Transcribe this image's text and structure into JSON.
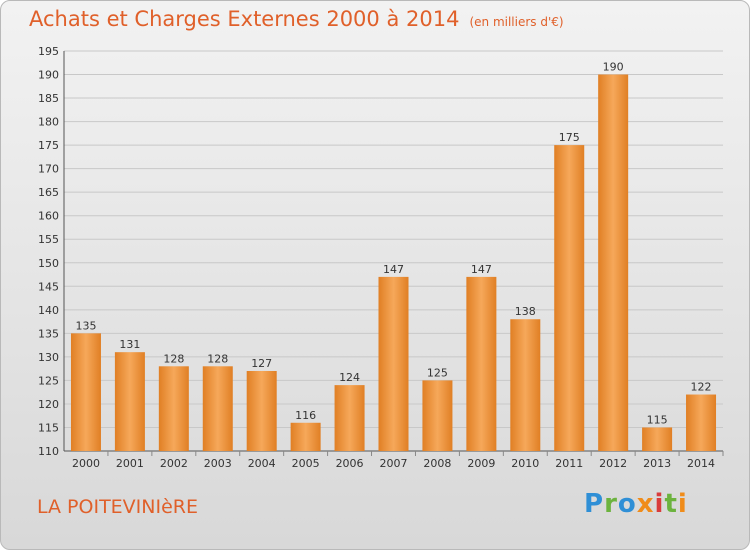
{
  "title": "Achats et Charges Externes 2000 à 2014",
  "subtitle": "(en milliers d'€)",
  "commune": "LA POITEVINIèRE",
  "brand": {
    "text": "Proxiti"
  },
  "colors": {
    "bar_light": "#f6a85a",
    "bar_dark": "#e07f24",
    "title": "#e0602a",
    "grid": "#c8c8c8",
    "axis_text": "#333333"
  },
  "chart_data": {
    "type": "bar",
    "title": "Achats et Charges Externes 2000 à 2014",
    "subtitle": "(en milliers d'€)",
    "xlabel": "",
    "ylabel": "",
    "categories": [
      "2000",
      "2001",
      "2002",
      "2003",
      "2004",
      "2005",
      "2006",
      "2007",
      "2008",
      "2009",
      "2010",
      "2011",
      "2012",
      "2013",
      "2014"
    ],
    "values": [
      135,
      131,
      128,
      128,
      127,
      116,
      124,
      147,
      125,
      147,
      138,
      175,
      190,
      115,
      122
    ],
    "ylim": [
      110,
      195
    ],
    "yticks": [
      110,
      115,
      120,
      125,
      130,
      135,
      140,
      145,
      150,
      155,
      160,
      165,
      170,
      175,
      180,
      185,
      190,
      195
    ],
    "grid": true,
    "data_labels": true
  }
}
